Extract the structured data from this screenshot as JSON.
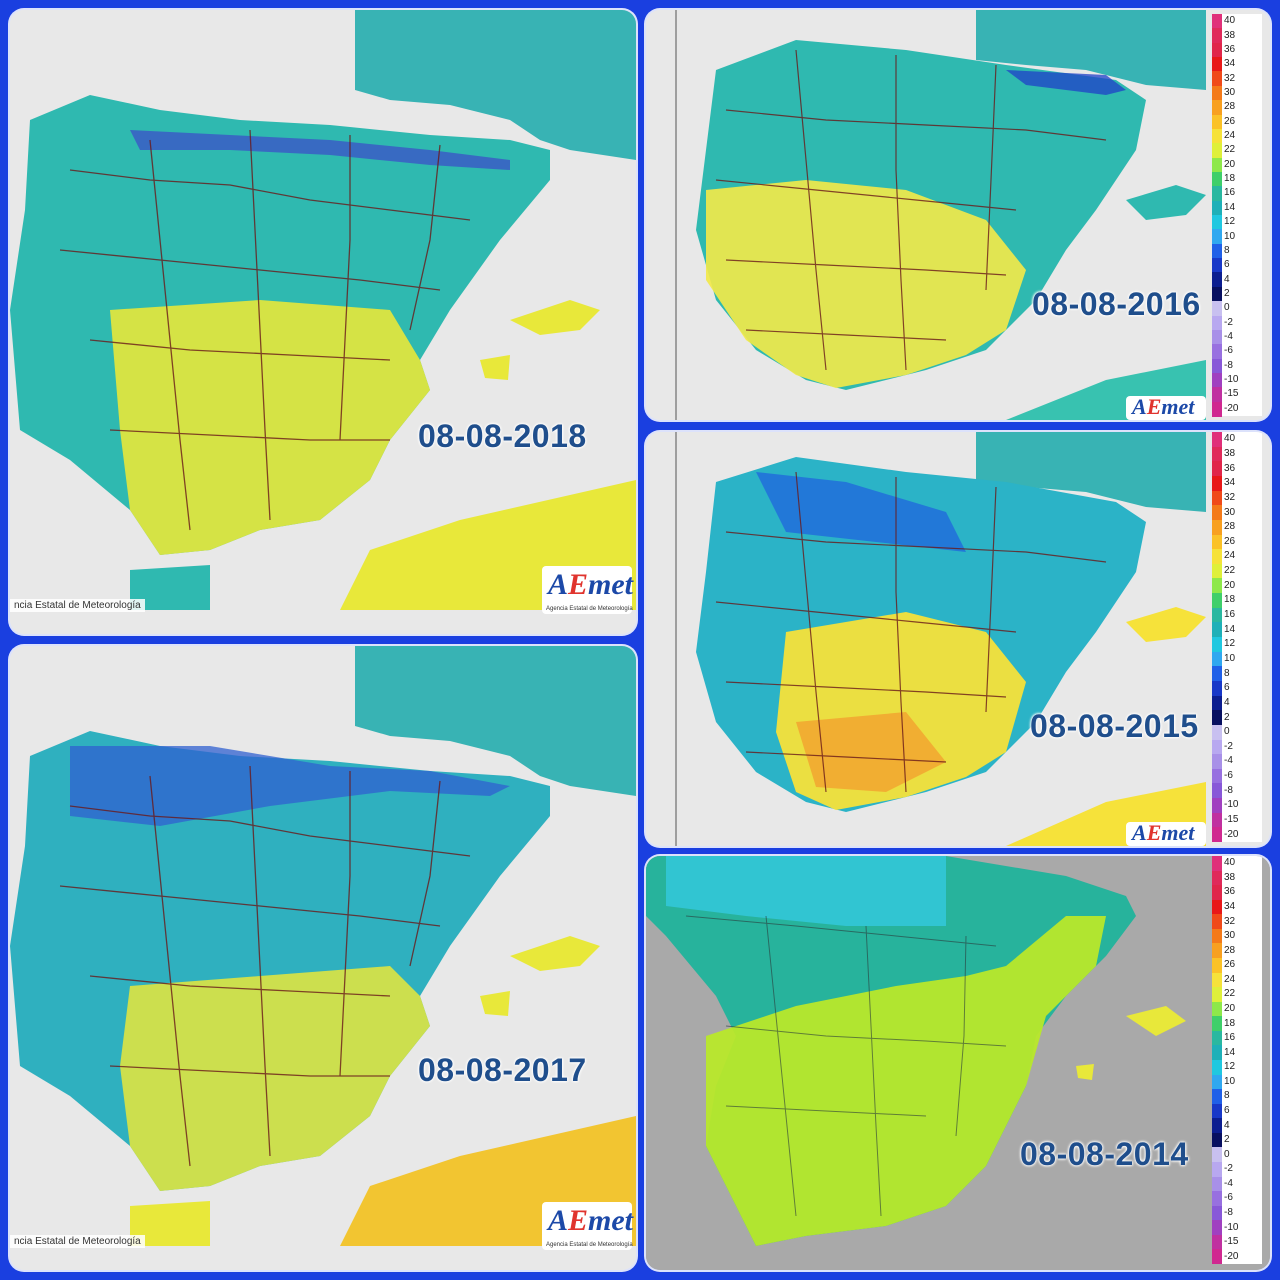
{
  "panels": [
    {
      "id": "p2018",
      "date": "08-08-2018",
      "footer": "ncia Estatal de Meteorología",
      "logo_text": "AEmet",
      "logo_sub": "Agencia Estatal de Meteorología",
      "dominant": "#2fb9b0",
      "south": "#e8e83a"
    },
    {
      "id": "p2016",
      "date": "08-08-2016",
      "logo_text": "AEmet",
      "dominant": "#2fb9b0",
      "south": "#f1e84a"
    },
    {
      "id": "p2015",
      "date": "08-08-2015",
      "logo_text": "AEmet",
      "dominant": "#2bb3c7",
      "south": "#f2c531"
    },
    {
      "id": "p2017",
      "date": "08-08-2017",
      "footer": "ncia Estatal de Meteorología",
      "logo_text": "AEmet",
      "logo_sub": "Agencia Estatal de Meteorología",
      "dominant": "#2fb0bf",
      "south": "#e8e83a"
    },
    {
      "id": "p2014",
      "date": "08-08-2014",
      "dominant": "#27b39c",
      "south": "#b8e82a"
    }
  ],
  "legend": {
    "ticks": [
      "40",
      "38",
      "36",
      "34",
      "32",
      "30",
      "28",
      "26",
      "24",
      "22",
      "20",
      "18",
      "16",
      "14",
      "12",
      "10",
      "8",
      "6",
      "4",
      "2",
      "0",
      "-2",
      "-4",
      "-6",
      "-8",
      "-10",
      "-15",
      "-20"
    ],
    "colors": [
      "#e0307a",
      "#e02a5a",
      "#e0264a",
      "#e81818",
      "#f04a1a",
      "#f47a1a",
      "#f8a020",
      "#fbc228",
      "#f6e23a",
      "#dff03a",
      "#8ee84a",
      "#3fcf6a",
      "#2ab8a0",
      "#1fb0b8",
      "#20c8e0",
      "#30a8f0",
      "#2060e8",
      "#1838c8",
      "#0c1e90",
      "#081060",
      "#c8c0f0",
      "#b8a8f0",
      "#a890e8",
      "#9870e0",
      "#8858d8",
      "#a040c0",
      "#c030a0",
      "#d02890"
    ]
  }
}
